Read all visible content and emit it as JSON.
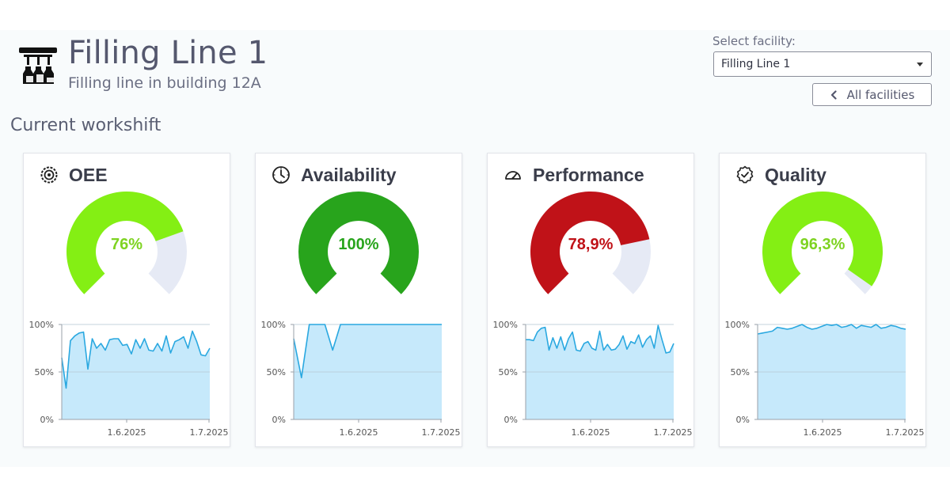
{
  "header": {
    "title": "Filling Line 1",
    "subtitle": "Filling line in building 12A",
    "facility_label": "Select facility:",
    "facility_selected": "Filling Line 1",
    "all_facilities_label": "All facilities"
  },
  "section_title": "Current workshift",
  "colors": {
    "light_green": "#84ef14",
    "dark_green": "#28a41c",
    "dark_red": "#c01218",
    "gauge_track": "#e6eaf5",
    "line": "#2aa8e0",
    "area": "#c6e9fb"
  },
  "cards": [
    {
      "title": "OEE",
      "icon": "gear-badge-icon",
      "value_label": "76%",
      "value": 76,
      "color": "#84ef14",
      "text_color": "#7ed321",
      "chart": {
        "y_ticks": [
          "100%",
          "50%",
          "0%"
        ],
        "x_ticks": [
          "1.6.2025",
          "1.7.2025"
        ],
        "points": [
          65,
          33,
          83,
          88,
          91,
          92,
          53,
          85,
          75,
          80,
          73,
          84,
          85,
          85,
          78,
          79,
          69,
          84,
          75,
          85,
          73,
          72,
          80,
          72,
          88,
          70,
          82,
          84,
          87,
          75,
          93,
          82,
          68,
          67,
          75
        ]
      }
    },
    {
      "title": "Availability",
      "icon": "clock-icon",
      "value_label": "100%",
      "value": 100,
      "color": "#28a41c",
      "text_color": "#28a41c",
      "chart": {
        "y_ticks": [
          "100%",
          "50%",
          "0%"
        ],
        "x_ticks": [
          "1.6.2025",
          "1.7.2025"
        ],
        "points": [
          85,
          44,
          100,
          100,
          100,
          73,
          100,
          100,
          100,
          100,
          100,
          100,
          100,
          100,
          100,
          100,
          100,
          100,
          100,
          100
        ]
      }
    },
    {
      "title": "Performance",
      "icon": "speedometer-icon",
      "value_label": "78,9%",
      "value": 78.9,
      "color": "#c01218",
      "text_color": "#c01218",
      "chart": {
        "y_ticks": [
          "100%",
          "50%",
          "0%"
        ],
        "x_ticks": [
          "1.6.2025",
          "1.7.2025"
        ],
        "points": [
          84,
          84,
          83,
          92,
          96,
          97,
          73,
          86,
          75,
          87,
          73,
          85,
          92,
          73,
          72,
          80,
          82,
          75,
          73,
          93,
          73,
          79,
          73,
          74,
          79,
          88,
          74,
          82,
          80,
          89,
          76,
          84,
          88,
          75,
          99,
          84,
          70,
          71,
          80
        ]
      }
    },
    {
      "title": "Quality",
      "icon": "quality-badge-icon",
      "value_label": "96,3%",
      "value": 96.3,
      "color": "#84ef14",
      "text_color": "#7ed321",
      "chart": {
        "y_ticks": [
          "100%",
          "50%",
          "0%"
        ],
        "x_ticks": [
          "1.6.2025",
          "1.7.2025"
        ],
        "points": [
          90,
          91,
          92,
          93,
          97,
          96,
          95,
          96,
          98,
          100,
          97,
          95,
          96,
          98,
          100,
          99,
          100,
          97,
          98,
          100,
          96,
          99,
          98,
          97,
          100,
          96,
          97,
          99,
          98,
          96,
          95
        ]
      }
    }
  ]
}
